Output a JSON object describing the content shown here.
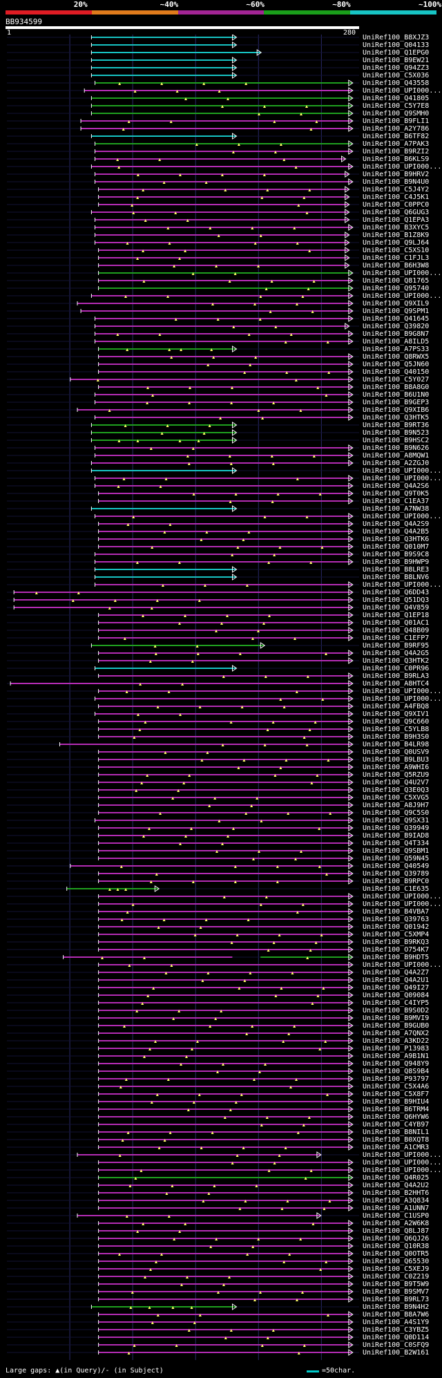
{
  "legend": {
    "segments": [
      {
        "label": "20%",
        "color": "#e01c24"
      },
      {
        "label": "~40%",
        "color": "#e07b1c"
      },
      {
        "label": "~60%",
        "color": "#a22494"
      },
      {
        "label": "~80%",
        "color": "#1a9e1a"
      },
      {
        "label": "~100%",
        "color": "#17c4c4"
      }
    ]
  },
  "query": {
    "id": "BB934599",
    "start": "1",
    "end": "280"
  },
  "colors": {
    "cyan": "#17c4c4",
    "magenta": "#b42cb4",
    "green": "#1fa01f",
    "gap": "#ffff66",
    "guide": "#2a2a6a"
  },
  "footer": {
    "left": "Large gaps: ▲(in Query)/- (in Subject)",
    "right": "=50char."
  },
  "hits": [
    {
      "n": "UniRef100_B8XJZ3",
      "c": "cyan",
      "s": 0.24,
      "e": 0.65
    },
    {
      "n": "UniRef100_Q04133",
      "c": "cyan",
      "s": 0.24,
      "e": 0.65
    },
    {
      "n": "UniRef100_Q1EPG0",
      "c": "cyan",
      "s": 0.24,
      "e": 0.72
    },
    {
      "n": "UniRef100_B9EW21",
      "c": "cyan",
      "s": 0.24,
      "e": 0.65
    },
    {
      "n": "UniRef100_Q94ZZ3",
      "c": "cyan",
      "s": 0.24,
      "e": 0.65
    },
    {
      "n": "UniRef100_C5X036",
      "c": "cyan",
      "s": 0.24,
      "e": 0.65
    },
    {
      "n": "UniRef100_Q43558",
      "c": "green",
      "s": 0.25,
      "e": 0.98
    },
    {
      "n": "UniRef100_UPI000...",
      "c": "magenta",
      "s": 0.22,
      "e": 0.98
    },
    {
      "n": "UniRef100_Q41805",
      "c": "green",
      "s": 0.24,
      "e": 0.98
    },
    {
      "n": "UniRef100_C5Y7E8",
      "c": "green",
      "s": 0.24,
      "e": 0.98
    },
    {
      "n": "UniRef100_Q9SMH0",
      "c": "green",
      "s": 0.24,
      "e": 0.98
    },
    {
      "n": "UniRef100_B9FLI1",
      "c": "magenta",
      "s": 0.21,
      "e": 0.98
    },
    {
      "n": "UniRef100_A2Y786",
      "c": "magenta",
      "s": 0.21,
      "e": 0.98
    },
    {
      "n": "UniRef100_B6TF82",
      "c": "cyan",
      "s": 0.24,
      "e": 0.65
    },
    {
      "n": "UniRef100_A7PAK3",
      "c": "green",
      "s": 0.25,
      "e": 0.98
    },
    {
      "n": "UniRef100_B9RZI2",
      "c": "magenta",
      "s": 0.25,
      "e": 0.98
    },
    {
      "n": "UniRef100_B6KLS9",
      "c": "magenta",
      "s": 0.25,
      "e": 0.96
    },
    {
      "n": "UniRef100_UPI000...",
      "c": "magenta",
      "s": 0.24,
      "e": 0.98
    },
    {
      "n": "UniRef100_B9HRV2",
      "c": "magenta",
      "s": 0.25,
      "e": 0.97
    },
    {
      "n": "UniRef100_B9N4U0",
      "c": "magenta",
      "s": 0.25,
      "e": 0.98
    },
    {
      "n": "UniRef100_C5J4Y2",
      "c": "magenta",
      "s": 0.26,
      "e": 0.97
    },
    {
      "n": "UniRef100_C4J5K1",
      "c": "magenta",
      "s": 0.26,
      "e": 0.97
    },
    {
      "n": "UniRef100_C0PPC0",
      "c": "magenta",
      "s": 0.26,
      "e": 0.97
    },
    {
      "n": "UniRef100_Q6GUG3",
      "c": "magenta",
      "s": 0.24,
      "e": 0.97
    },
    {
      "n": "UniRef100_Q1EPA3",
      "c": "magenta",
      "s": 0.25,
      "e": 0.97
    },
    {
      "n": "UniRef100_B3XYC5",
      "c": "magenta",
      "s": 0.25,
      "e": 0.98
    },
    {
      "n": "UniRef100_B1Z8K9",
      "c": "magenta",
      "s": 0.25,
      "e": 0.97
    },
    {
      "n": "UniRef100_Q9LJ64",
      "c": "magenta",
      "s": 0.25,
      "e": 0.97
    },
    {
      "n": "UniRef100_C5XS10",
      "c": "magenta",
      "s": 0.26,
      "e": 0.97
    },
    {
      "n": "UniRef100_C1FJL3",
      "c": "magenta",
      "s": 0.26,
      "e": 0.97
    },
    {
      "n": "UniRef100_B6H3W8",
      "c": "magenta",
      "s": 0.26,
      "e": 0.97
    },
    {
      "n": "UniRef100_UPI000...",
      "c": "green",
      "s": 0.26,
      "e": 0.98
    },
    {
      "n": "UniRef100_Q81765",
      "c": "magenta",
      "s": 0.26,
      "e": 0.98
    },
    {
      "n": "UniRef100_Q95740",
      "c": "green",
      "s": 0.26,
      "e": 0.98
    },
    {
      "n": "UniRef100_UPI000...",
      "c": "magenta",
      "s": 0.24,
      "e": 0.98
    },
    {
      "n": "UniRef100_Q9XIL9",
      "c": "magenta",
      "s": 0.2,
      "e": 0.98
    },
    {
      "n": "UniRef100_Q9SPM1",
      "c": "magenta",
      "s": 0.21,
      "e": 0.98
    },
    {
      "n": "UniRef100_Q41645",
      "c": "magenta",
      "s": 0.25,
      "e": 0.98
    },
    {
      "n": "UniRef100_Q39820",
      "c": "magenta",
      "s": 0.25,
      "e": 0.97
    },
    {
      "n": "UniRef100_B9G8N7",
      "c": "magenta",
      "s": 0.25,
      "e": 0.98
    },
    {
      "n": "UniRef100_A8ILD5",
      "c": "magenta",
      "s": 0.25,
      "e": 0.98
    },
    {
      "n": "UniRef100_A7PS33",
      "c": "green",
      "s": 0.26,
      "e": 0.65
    },
    {
      "n": "UniRef100_Q8RWX5",
      "c": "magenta",
      "s": 0.26,
      "e": 0.98
    },
    {
      "n": "UniRef100_Q5JN60",
      "c": "magenta",
      "s": 0.26,
      "e": 0.98
    },
    {
      "n": "UniRef100_Q40150",
      "c": "magenta",
      "s": 0.26,
      "e": 0.98
    },
    {
      "n": "UniRef100_C5Y027",
      "c": "magenta",
      "s": 0.18,
      "e": 0.98
    },
    {
      "n": "UniRef100_B8A8G0",
      "c": "magenta",
      "s": 0.26,
      "e": 0.98
    },
    {
      "n": "UniRef100_B6U1N0",
      "c": "magenta",
      "s": 0.25,
      "e": 0.98
    },
    {
      "n": "UniRef100_B9GEP3",
      "c": "magenta",
      "s": 0.25,
      "e": 0.98
    },
    {
      "n": "UniRef100_Q9XIB6",
      "c": "magenta",
      "s": 0.2,
      "e": 0.98
    },
    {
      "n": "UniRef100_Q3HTK5",
      "c": "magenta",
      "s": 0.25,
      "e": 0.98
    },
    {
      "n": "UniRef100_B9RT36",
      "c": "green",
      "s": 0.24,
      "e": 0.65
    },
    {
      "n": "UniRef100_B9N523",
      "c": "green",
      "s": 0.24,
      "e": 0.65
    },
    {
      "n": "UniRef100_B9HSC2",
      "c": "green",
      "s": 0.24,
      "e": 0.65
    },
    {
      "n": "UniRef100_B9N626",
      "c": "magenta",
      "s": 0.25,
      "e": 0.98
    },
    {
      "n": "UniRef100_A8MQW1",
      "c": "magenta",
      "s": 0.25,
      "e": 0.98
    },
    {
      "n": "UniRef100_A2ZGJ0",
      "c": "magenta",
      "s": 0.24,
      "e": 0.98
    },
    {
      "n": "UniRef100_UPI000...",
      "c": "cyan",
      "s": 0.24,
      "e": 0.65
    },
    {
      "n": "UniRef100_UPI000...",
      "c": "magenta",
      "s": 0.25,
      "e": 0.98
    },
    {
      "n": "UniRef100_Q4A2S6",
      "c": "magenta",
      "s": 0.25,
      "e": 0.98
    },
    {
      "n": "UniRef100_Q9T0K5",
      "c": "magenta",
      "s": 0.26,
      "e": 0.98
    },
    {
      "n": "UniRef100_C1EA37",
      "c": "magenta",
      "s": 0.26,
      "e": 0.98
    },
    {
      "n": "UniRef100_A7NW38",
      "c": "cyan",
      "s": 0.24,
      "e": 0.65
    },
    {
      "n": "UniRef100_UPI000...",
      "c": "magenta",
      "s": 0.25,
      "e": 0.98
    },
    {
      "n": "UniRef100_Q4A2S9",
      "c": "magenta",
      "s": 0.26,
      "e": 0.98
    },
    {
      "n": "UniRef100_Q4A2B5",
      "c": "magenta",
      "s": 0.26,
      "e": 0.98
    },
    {
      "n": "UniRef100_Q3HTK6",
      "c": "magenta",
      "s": 0.26,
      "e": 0.98
    },
    {
      "n": "UniRef100_Q010M7",
      "c": "magenta",
      "s": 0.26,
      "e": 0.98
    },
    {
      "n": "UniRef100_B9S9C8",
      "c": "magenta",
      "s": 0.25,
      "e": 0.98
    },
    {
      "n": "UniRef100_B9HWP9",
      "c": "magenta",
      "s": 0.25,
      "e": 0.98
    },
    {
      "n": "UniRef100_B8LRE3",
      "c": "cyan",
      "s": 0.25,
      "e": 0.65
    },
    {
      "n": "UniRef100_B8LNV6",
      "c": "cyan",
      "s": 0.25,
      "e": 0.65
    },
    {
      "n": "UniRef100_UPI000...",
      "c": "magenta",
      "s": 0.25,
      "e": 0.98
    },
    {
      "n": "UniRef100_Q6DD43",
      "c": "magenta",
      "s": 0.02,
      "e": 0.98
    },
    {
      "n": "UniRef100_Q51DQ3",
      "c": "magenta",
      "s": 0.02,
      "e": 0.98
    },
    {
      "n": "UniRef100_Q4V859",
      "c": "magenta",
      "s": 0.02,
      "e": 0.98
    },
    {
      "n": "UniRef100_Q1EP18",
      "c": "magenta",
      "s": 0.26,
      "e": 0.98
    },
    {
      "n": "UniRef100_Q01AC1",
      "c": "magenta",
      "s": 0.26,
      "e": 0.98
    },
    {
      "n": "UniRef100_Q48B09",
      "c": "magenta",
      "s": 0.26,
      "e": 0.98
    },
    {
      "n": "UniRef100_C1EFP7",
      "c": "magenta",
      "s": 0.26,
      "e": 0.98
    },
    {
      "n": "UniRef100_B9RF95",
      "c": "green",
      "s": 0.24,
      "e": 0.73
    },
    {
      "n": "UniRef100_Q4A2G5",
      "c": "magenta",
      "s": 0.26,
      "e": 0.98
    },
    {
      "n": "UniRef100_Q3HTK2",
      "c": "magenta",
      "s": 0.26,
      "e": 0.98
    },
    {
      "n": "UniRef100_C0PR96",
      "c": "cyan",
      "s": 0.25,
      "e": 0.65
    },
    {
      "n": "UniRef100_B9RLA3",
      "c": "magenta",
      "s": 0.26,
      "e": 0.98
    },
    {
      "n": "UniRef100_A8HTC4",
      "c": "magenta",
      "s": 0.01,
      "e": 0.98
    },
    {
      "n": "UniRef100_UPI000...",
      "c": "magenta",
      "s": 0.26,
      "e": 0.98
    },
    {
      "n": "UniRef100_UPI000...",
      "c": "magenta",
      "s": 0.25,
      "e": 0.98
    },
    {
      "n": "UniRef100_A4FBQ8",
      "c": "magenta",
      "s": 0.26,
      "e": 0.98
    },
    {
      "n": "UniRef100_Q9XIV1",
      "c": "magenta",
      "s": 0.25,
      "e": 0.98
    },
    {
      "n": "UniRef100_Q9C660",
      "c": "magenta",
      "s": 0.26,
      "e": 0.98
    },
    {
      "n": "UniRef100_C5YLB8",
      "c": "magenta",
      "s": 0.26,
      "e": 0.98
    },
    {
      "n": "UniRef100_B9H3S0",
      "c": "magenta",
      "s": 0.26,
      "e": 0.98
    },
    {
      "n": "UniRef100_B4LR98",
      "c": "magenta",
      "s": 0.15,
      "e": 0.98
    },
    {
      "n": "UniRef100_Q0USV9",
      "c": "magenta",
      "s": 0.26,
      "e": 0.98
    },
    {
      "n": "UniRef100_B9LBU3",
      "c": "magenta",
      "s": 0.26,
      "e": 0.98
    },
    {
      "n": "UniRef100_A9WHI6",
      "c": "magenta",
      "s": 0.26,
      "e": 0.98
    },
    {
      "n": "UniRef100_Q5RZU9",
      "c": "magenta",
      "s": 0.26,
      "e": 0.98
    },
    {
      "n": "UniRef100_Q4U2V7",
      "c": "magenta",
      "s": 0.26,
      "e": 0.98
    },
    {
      "n": "UniRef100_Q3E0Q3",
      "c": "magenta",
      "s": 0.26,
      "e": 0.98
    },
    {
      "n": "UniRef100_C5XVG5",
      "c": "magenta",
      "s": 0.26,
      "e": 0.98
    },
    {
      "n": "UniRef100_A8J9H7",
      "c": "magenta",
      "s": 0.26,
      "e": 0.98
    },
    {
      "n": "UniRef100_Q9C5S0",
      "c": "magenta",
      "s": 0.26,
      "e": 0.98
    },
    {
      "n": "UniRef100_Q9SX31",
      "c": "magenta",
      "s": 0.25,
      "e": 0.98
    },
    {
      "n": "UniRef100_Q39949",
      "c": "magenta",
      "s": 0.26,
      "e": 0.98
    },
    {
      "n": "UniRef100_B9IAD8",
      "c": "magenta",
      "s": 0.26,
      "e": 0.98
    },
    {
      "n": "UniRef100_Q4T334",
      "c": "magenta",
      "s": 0.26,
      "e": 0.98
    },
    {
      "n": "UniRef100_Q9SBM1",
      "c": "magenta",
      "s": 0.26,
      "e": 0.98
    },
    {
      "n": "UniRef100_Q59N45",
      "c": "magenta",
      "s": 0.26,
      "e": 0.98
    },
    {
      "n": "UniRef100_Q40549",
      "c": "magenta",
      "s": 0.18,
      "e": 0.98
    },
    {
      "n": "UniRef100_Q39789",
      "c": "magenta",
      "s": 0.26,
      "e": 0.98
    },
    {
      "n": "UniRef100_B9RPC0",
      "c": "magenta",
      "s": 0.26,
      "e": 0.98
    },
    {
      "n": "UniRef100_C1E635",
      "c": "green",
      "s": 0.17,
      "e": 0.43
    },
    {
      "n": "UniRef100_UPI000...",
      "c": "magenta",
      "s": 0.26,
      "e": 0.98
    },
    {
      "n": "UniRef100_UPI000...",
      "c": "magenta",
      "s": 0.26,
      "e": 0.98
    },
    {
      "n": "UniRef100_B4VBA7",
      "c": "magenta",
      "s": 0.26,
      "e": 0.98
    },
    {
      "n": "UniRef100_Q39763",
      "c": "magenta",
      "s": 0.26,
      "e": 0.98
    },
    {
      "n": "UniRef100_Q01942",
      "c": "magenta",
      "s": 0.26,
      "e": 0.98
    },
    {
      "n": "UniRef100_C5XMP4",
      "c": "magenta",
      "s": 0.26,
      "e": 0.98
    },
    {
      "n": "UniRef100_B9RKQ3",
      "c": "magenta",
      "s": 0.26,
      "e": 0.98
    },
    {
      "n": "UniRef100_O754K7",
      "c": "magenta",
      "s": 0.26,
      "e": 0.98
    },
    {
      "n": "UniRef100_B9HDT5",
      "c": "magenta",
      "s": 0.16,
      "e": 0.98,
      "g": [
        0.64,
        0.72
      ]
    },
    {
      "n": "UniRef100_UPI000...",
      "c": "magenta",
      "s": 0.26,
      "e": 0.98
    },
    {
      "n": "UniRef100_Q4A2Z7",
      "c": "magenta",
      "s": 0.26,
      "e": 0.98
    },
    {
      "n": "UniRef100_Q4A2U1",
      "c": "magenta",
      "s": 0.26,
      "e": 0.98
    },
    {
      "n": "UniRef100_Q49I27",
      "c": "magenta",
      "s": 0.26,
      "e": 0.98
    },
    {
      "n": "UniRef100_Q09084",
      "c": "magenta",
      "s": 0.26,
      "e": 0.98
    },
    {
      "n": "UniRef100_C4IYP5",
      "c": "magenta",
      "s": 0.26,
      "e": 0.98
    },
    {
      "n": "UniRef100_B9S0D2",
      "c": "magenta",
      "s": 0.26,
      "e": 0.98
    },
    {
      "n": "UniRef100_B9MVI9",
      "c": "magenta",
      "s": 0.26,
      "e": 0.98
    },
    {
      "n": "UniRef100_B9GUB0",
      "c": "magenta",
      "s": 0.26,
      "e": 0.98
    },
    {
      "n": "UniRef100_A7QNX2",
      "c": "magenta",
      "s": 0.26,
      "e": 0.98
    },
    {
      "n": "UniRef100_A3KD22",
      "c": "magenta",
      "s": 0.26,
      "e": 0.98
    },
    {
      "n": "UniRef100_P13983",
      "c": "magenta",
      "s": 0.26,
      "e": 0.98
    },
    {
      "n": "UniRef100_A9B1N1",
      "c": "magenta",
      "s": 0.26,
      "e": 0.98
    },
    {
      "n": "UniRef100_Q948Y9",
      "c": "magenta",
      "s": 0.26,
      "e": 0.98
    },
    {
      "n": "UniRef100_Q8S9B4",
      "c": "magenta",
      "s": 0.26,
      "e": 0.98
    },
    {
      "n": "UniRef100_P93797",
      "c": "magenta",
      "s": 0.26,
      "e": 0.98
    },
    {
      "n": "UniRef100_C5X4A6",
      "c": "magenta",
      "s": 0.26,
      "e": 0.98
    },
    {
      "n": "UniRef100_C5X8F7",
      "c": "magenta",
      "s": 0.26,
      "e": 0.98
    },
    {
      "n": "UniRef100_B9HIU4",
      "c": "magenta",
      "s": 0.26,
      "e": 0.98
    },
    {
      "n": "UniRef100_B6TRM4",
      "c": "magenta",
      "s": 0.26,
      "e": 0.98
    },
    {
      "n": "UniRef100_Q6HYW6",
      "c": "magenta",
      "s": 0.26,
      "e": 0.98
    },
    {
      "n": "UniRef100_C4YB97",
      "c": "magenta",
      "s": 0.26,
      "e": 0.98
    },
    {
      "n": "UniRef100_B8NIL1",
      "c": "magenta",
      "s": 0.26,
      "e": 0.98
    },
    {
      "n": "UniRef100_B0XQT8",
      "c": "magenta",
      "s": 0.26,
      "e": 0.98
    },
    {
      "n": "UniRef100_A1CMR3",
      "c": "magenta",
      "s": 0.26,
      "e": 0.98
    },
    {
      "n": "UniRef100_UPI000...",
      "c": "magenta",
      "s": 0.2,
      "e": 0.89
    },
    {
      "n": "UniRef100_UPI000...",
      "c": "magenta",
      "s": 0.26,
      "e": 0.98
    },
    {
      "n": "UniRef100_UPI000...",
      "c": "magenta",
      "s": 0.26,
      "e": 0.98
    },
    {
      "n": "UniRef100_Q4R025",
      "c": "green",
      "s": 0.26,
      "e": 0.98
    },
    {
      "n": "UniRef100_Q4A2U2",
      "c": "magenta",
      "s": 0.26,
      "e": 0.98
    },
    {
      "n": "UniRef100_B2HHT6",
      "c": "magenta",
      "s": 0.26,
      "e": 0.98
    },
    {
      "n": "UniRef100_A3Q834",
      "c": "magenta",
      "s": 0.26,
      "e": 0.98
    },
    {
      "n": "UniRef100_A1UNN7",
      "c": "magenta",
      "s": 0.26,
      "e": 0.98
    },
    {
      "n": "UniRef100_C1USP0",
      "c": "magenta",
      "s": 0.2,
      "e": 0.89
    },
    {
      "n": "UniRef100_A2W6K8",
      "c": "magenta",
      "s": 0.26,
      "e": 0.98
    },
    {
      "n": "UniRef100_Q8LJ87",
      "c": "magenta",
      "s": 0.26,
      "e": 0.98
    },
    {
      "n": "UniRef100_Q6QJ26",
      "c": "magenta",
      "s": 0.26,
      "e": 0.98
    },
    {
      "n": "UniRef100_Q10R38",
      "c": "magenta",
      "s": 0.26,
      "e": 0.98
    },
    {
      "n": "UniRef100_Q0OTR5",
      "c": "magenta",
      "s": 0.26,
      "e": 0.98
    },
    {
      "n": "UniRef100_Q65530",
      "c": "magenta",
      "s": 0.26,
      "e": 0.98
    },
    {
      "n": "UniRef100_C5XEJ9",
      "c": "magenta",
      "s": 0.26,
      "e": 0.98
    },
    {
      "n": "UniRef100_C0Z219",
      "c": "magenta",
      "s": 0.26,
      "e": 0.98
    },
    {
      "n": "UniRef100_B9T5W9",
      "c": "magenta",
      "s": 0.26,
      "e": 0.98
    },
    {
      "n": "UniRef100_B9SMV7",
      "c": "magenta",
      "s": 0.26,
      "e": 0.98
    },
    {
      "n": "UniRef100_B9RL73",
      "c": "magenta",
      "s": 0.26,
      "e": 0.98
    },
    {
      "n": "UniRef100_B9N4H2",
      "c": "green",
      "s": 0.24,
      "e": 0.65
    },
    {
      "n": "UniRef100_B8A7W6",
      "c": "magenta",
      "s": 0.26,
      "e": 0.98
    },
    {
      "n": "UniRef100_A4S1Y9",
      "c": "magenta",
      "s": 0.26,
      "e": 0.98
    },
    {
      "n": "UniRef100_C3YBZ5",
      "c": "magenta",
      "s": 0.26,
      "e": 0.98
    },
    {
      "n": "UniRef100_Q0D114",
      "c": "magenta",
      "s": 0.26,
      "e": 0.98
    },
    {
      "n": "UniRef100_C0SFQ9",
      "c": "magenta",
      "s": 0.26,
      "e": 0.98
    },
    {
      "n": "UniRef100_B2W161",
      "c": "magenta",
      "s": 0.26,
      "e": 0.98
    }
  ]
}
